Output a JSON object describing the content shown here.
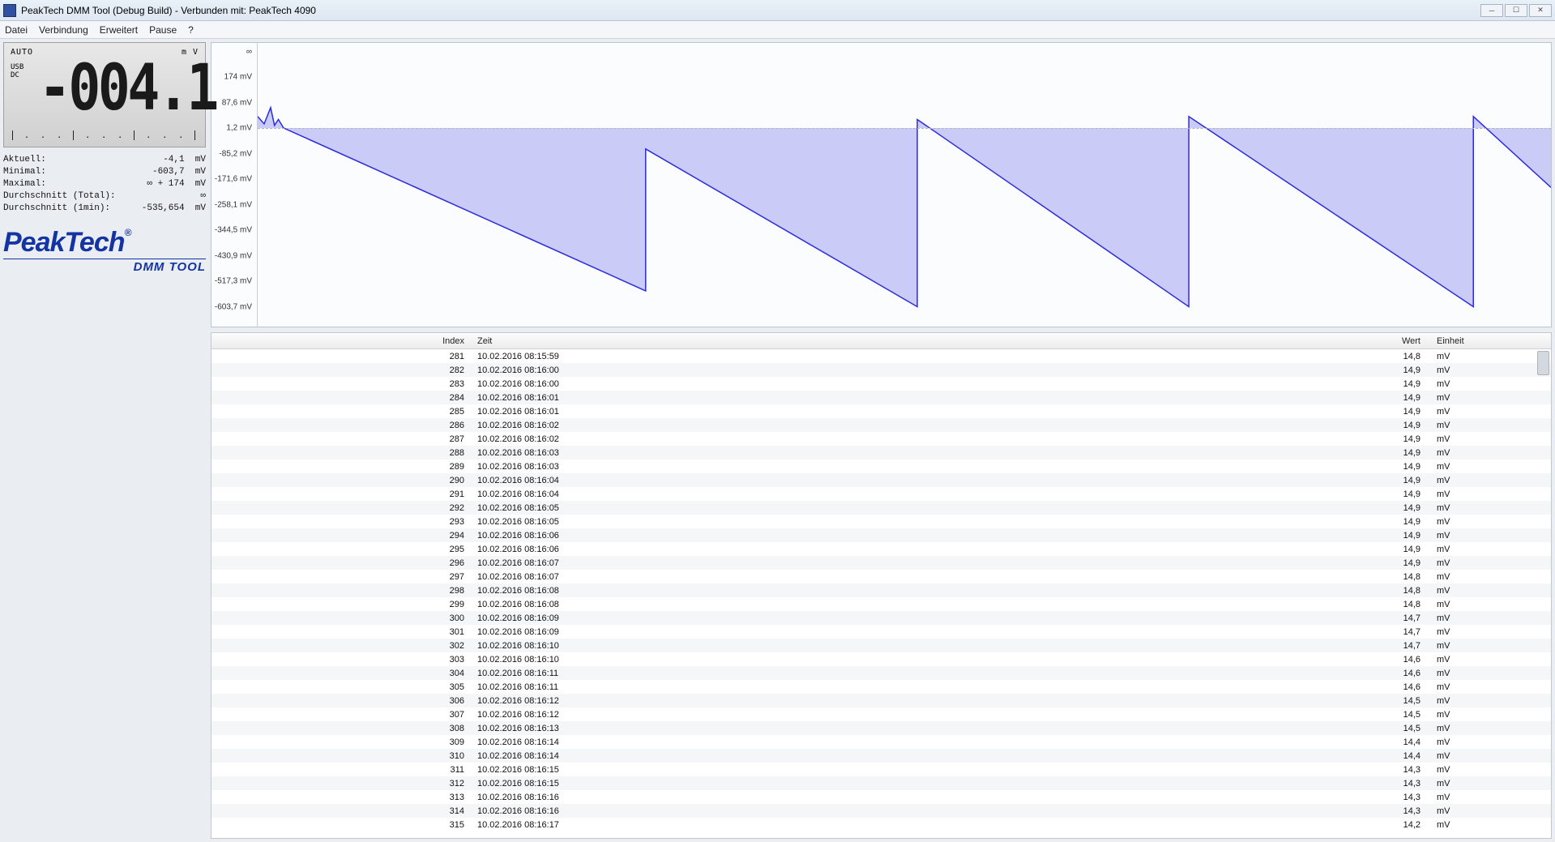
{
  "window": {
    "title": "PeakTech DMM Tool (Debug Build) - Verbunden mit: PeakTech 4090"
  },
  "menu": {
    "items": [
      "Datei",
      "Verbindung",
      "Erweitert",
      "Pause",
      "?"
    ]
  },
  "lcd": {
    "mode": "AUTO",
    "unit": "m V",
    "left1": "USB",
    "left2": "DC",
    "value": "-004.1"
  },
  "stats": {
    "aktuell_label": "Aktuell:",
    "aktuell_value": "-4,1  mV",
    "minimal_label": "Minimal:",
    "minimal_value": "-603,7  mV",
    "maximal_label": "Maximal:",
    "maximal_value": "∞ + 174  mV",
    "avg_total_label": "Durchschnitt (Total):",
    "avg_total_value": "∞",
    "avg_1min_label": "Durchschnitt (1min):",
    "avg_1min_value": "-535,654  mV"
  },
  "logo": {
    "brand": "PeakTech",
    "reg": "®",
    "sub": "DMM TOOL"
  },
  "chart": {
    "ylabels": [
      "∞",
      "174 mV",
      "87,6 mV",
      "1,2 mV",
      "-85,2 mV",
      "-171,6 mV",
      "-258,1 mV",
      "-344,5 mV",
      "-430,9 mV",
      "-517,3 mV",
      "-603,7 mV"
    ],
    "ylabel_positions_pct": [
      3,
      12,
      21,
      30,
      39,
      48,
      57,
      66,
      75,
      84,
      93
    ],
    "zero_line_pct": 30,
    "ymin": -603.7,
    "ymax": 260,
    "stroke": "#2c2cdc",
    "fill": "#a3a3f0",
    "fill_opacity": 0.55,
    "series": [
      {
        "x": 0,
        "y": 40
      },
      {
        "x": 0.5,
        "y": 15
      },
      {
        "x": 1,
        "y": 70
      },
      {
        "x": 1.3,
        "y": 10
      },
      {
        "x": 1.6,
        "y": 30
      },
      {
        "x": 2,
        "y": 1.2
      },
      {
        "x": 30,
        "y": -550
      },
      {
        "x": 30,
        "y": -70
      },
      {
        "x": 51,
        "y": -603.7
      },
      {
        "x": 51,
        "y": 30
      },
      {
        "x": 72,
        "y": -603.7
      },
      {
        "x": 72,
        "y": 40
      },
      {
        "x": 94,
        "y": -603.7
      },
      {
        "x": 94,
        "y": 40
      },
      {
        "x": 100,
        "y": -200
      }
    ]
  },
  "table": {
    "columns": {
      "index": "Index",
      "zeit": "Zeit",
      "wert": "Wert",
      "einheit": "Einheit"
    },
    "rows": [
      {
        "idx": "281",
        "zeit": "10.02.2016 08:15:59",
        "wert": "14,8",
        "einheit": "mV"
      },
      {
        "idx": "282",
        "zeit": "10.02.2016 08:16:00",
        "wert": "14,9",
        "einheit": "mV"
      },
      {
        "idx": "283",
        "zeit": "10.02.2016 08:16:00",
        "wert": "14,9",
        "einheit": "mV"
      },
      {
        "idx": "284",
        "zeit": "10.02.2016 08:16:01",
        "wert": "14,9",
        "einheit": "mV"
      },
      {
        "idx": "285",
        "zeit": "10.02.2016 08:16:01",
        "wert": "14,9",
        "einheit": "mV"
      },
      {
        "idx": "286",
        "zeit": "10.02.2016 08:16:02",
        "wert": "14,9",
        "einheit": "mV"
      },
      {
        "idx": "287",
        "zeit": "10.02.2016 08:16:02",
        "wert": "14,9",
        "einheit": "mV"
      },
      {
        "idx": "288",
        "zeit": "10.02.2016 08:16:03",
        "wert": "14,9",
        "einheit": "mV"
      },
      {
        "idx": "289",
        "zeit": "10.02.2016 08:16:03",
        "wert": "14,9",
        "einheit": "mV"
      },
      {
        "idx": "290",
        "zeit": "10.02.2016 08:16:04",
        "wert": "14,9",
        "einheit": "mV"
      },
      {
        "idx": "291",
        "zeit": "10.02.2016 08:16:04",
        "wert": "14,9",
        "einheit": "mV"
      },
      {
        "idx": "292",
        "zeit": "10.02.2016 08:16:05",
        "wert": "14,9",
        "einheit": "mV"
      },
      {
        "idx": "293",
        "zeit": "10.02.2016 08:16:05",
        "wert": "14,9",
        "einheit": "mV"
      },
      {
        "idx": "294",
        "zeit": "10.02.2016 08:16:06",
        "wert": "14,9",
        "einheit": "mV"
      },
      {
        "idx": "295",
        "zeit": "10.02.2016 08:16:06",
        "wert": "14,9",
        "einheit": "mV"
      },
      {
        "idx": "296",
        "zeit": "10.02.2016 08:16:07",
        "wert": "14,9",
        "einheit": "mV"
      },
      {
        "idx": "297",
        "zeit": "10.02.2016 08:16:07",
        "wert": "14,8",
        "einheit": "mV"
      },
      {
        "idx": "298",
        "zeit": "10.02.2016 08:16:08",
        "wert": "14,8",
        "einheit": "mV"
      },
      {
        "idx": "299",
        "zeit": "10.02.2016 08:16:08",
        "wert": "14,8",
        "einheit": "mV"
      },
      {
        "idx": "300",
        "zeit": "10.02.2016 08:16:09",
        "wert": "14,7",
        "einheit": "mV"
      },
      {
        "idx": "301",
        "zeit": "10.02.2016 08:16:09",
        "wert": "14,7",
        "einheit": "mV"
      },
      {
        "idx": "302",
        "zeit": "10.02.2016 08:16:10",
        "wert": "14,7",
        "einheit": "mV"
      },
      {
        "idx": "303",
        "zeit": "10.02.2016 08:16:10",
        "wert": "14,6",
        "einheit": "mV"
      },
      {
        "idx": "304",
        "zeit": "10.02.2016 08:16:11",
        "wert": "14,6",
        "einheit": "mV"
      },
      {
        "idx": "305",
        "zeit": "10.02.2016 08:16:11",
        "wert": "14,6",
        "einheit": "mV"
      },
      {
        "idx": "306",
        "zeit": "10.02.2016 08:16:12",
        "wert": "14,5",
        "einheit": "mV"
      },
      {
        "idx": "307",
        "zeit": "10.02.2016 08:16:12",
        "wert": "14,5",
        "einheit": "mV"
      },
      {
        "idx": "308",
        "zeit": "10.02.2016 08:16:13",
        "wert": "14,5",
        "einheit": "mV"
      },
      {
        "idx": "309",
        "zeit": "10.02.2016 08:16:14",
        "wert": "14,4",
        "einheit": "mV"
      },
      {
        "idx": "310",
        "zeit": "10.02.2016 08:16:14",
        "wert": "14,4",
        "einheit": "mV"
      },
      {
        "idx": "311",
        "zeit": "10.02.2016 08:16:15",
        "wert": "14,3",
        "einheit": "mV"
      },
      {
        "idx": "312",
        "zeit": "10.02.2016 08:16:15",
        "wert": "14,3",
        "einheit": "mV"
      },
      {
        "idx": "313",
        "zeit": "10.02.2016 08:16:16",
        "wert": "14,3",
        "einheit": "mV"
      },
      {
        "idx": "314",
        "zeit": "10.02.2016 08:16:16",
        "wert": "14,3",
        "einheit": "mV"
      },
      {
        "idx": "315",
        "zeit": "10.02.2016 08:16:17",
        "wert": "14,2",
        "einheit": "mV"
      }
    ]
  }
}
